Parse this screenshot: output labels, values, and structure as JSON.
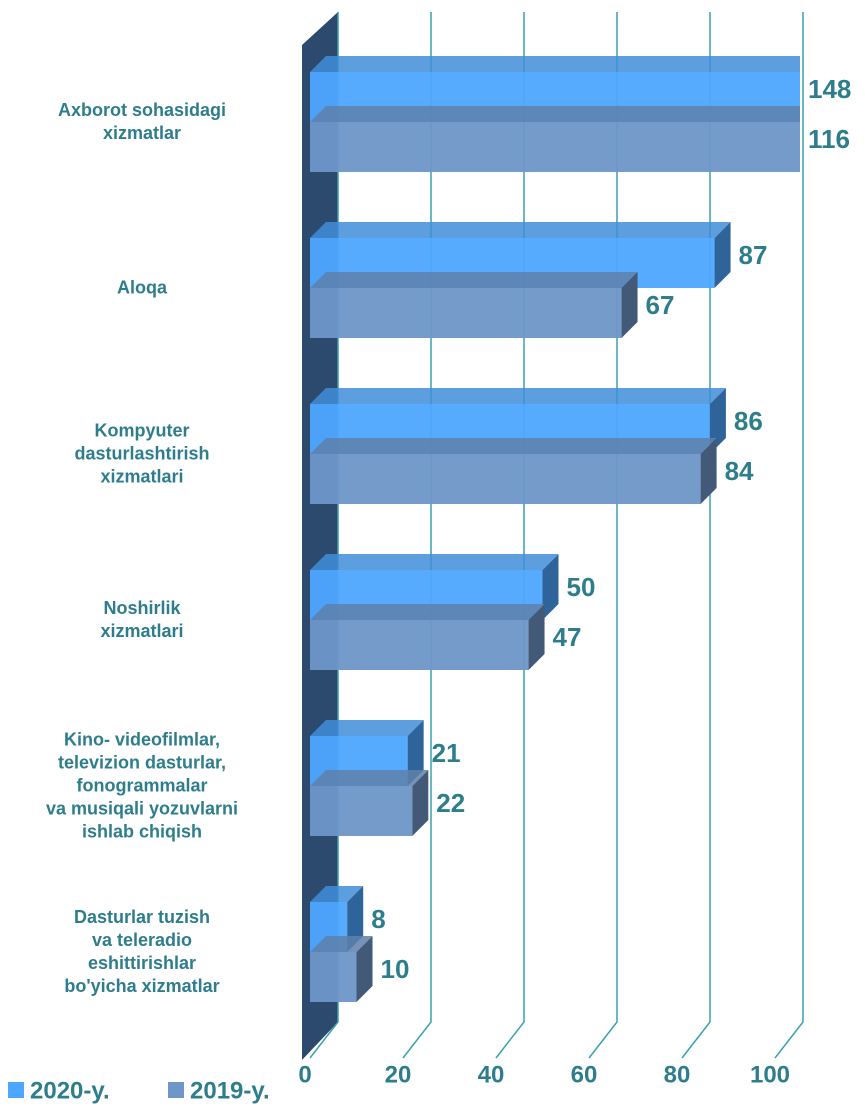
{
  "chart_data": {
    "type": "bar3d",
    "orientation": "horizontal",
    "categories": [
      "Axborot sohasidagi\nxizmatlar",
      "Aloqa",
      "Kompyuter\ndasturlashtirish\nxizmatlari",
      "Noshirlik\nxizmatlari",
      "Kino- videofilmlar,\ntelevizion dasturlar,\nfonogrammalar\nva musiqali yozuvlarni\nishlab chiqish",
      "Dasturlar tuzish\nva teleradio\neshittirishlar\nbo'yicha xizmatlar"
    ],
    "series": [
      {
        "name": "2020-y.",
        "color": "#4da6ff",
        "values": [
          148,
          87,
          86,
          50,
          21,
          8
        ]
      },
      {
        "name": "2019-y.",
        "color": "#6e96c8",
        "values": [
          116,
          67,
          84,
          47,
          22,
          10
        ]
      }
    ],
    "xlim": [
      0,
      100
    ],
    "xticks": [
      0,
      20,
      40,
      60,
      80,
      100
    ],
    "grid": true,
    "legend": "bottom-left"
  }
}
